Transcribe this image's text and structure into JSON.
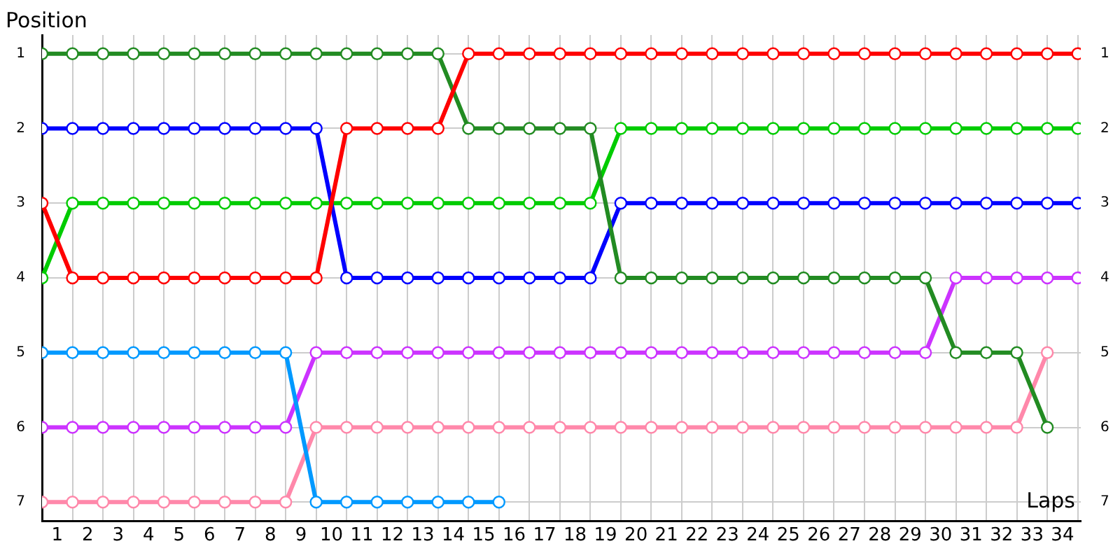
{
  "chart_data": {
    "type": "line",
    "xlabel": "Laps",
    "ylabel": "Position",
    "x": [
      0,
      1,
      2,
      3,
      4,
      5,
      6,
      7,
      8,
      9,
      10,
      11,
      12,
      13,
      14,
      15,
      16,
      17,
      18,
      19,
      20,
      21,
      22,
      23,
      24,
      25,
      26,
      27,
      28,
      29,
      30,
      31,
      32,
      33,
      34
    ],
    "xlim": [
      0,
      34.1
    ],
    "xticks": [
      {
        "value": 0,
        "label": null
      },
      {
        "value": 0.5,
        "label": "1"
      },
      {
        "value": 1,
        "label": null
      },
      {
        "value": 1.5,
        "label": "2"
      },
      {
        "value": 2,
        "label": null
      },
      {
        "value": 2.5,
        "label": "3"
      },
      {
        "value": 3,
        "label": null
      },
      {
        "value": 3.5,
        "label": "4"
      },
      {
        "value": 4,
        "label": null
      },
      {
        "value": 4.5,
        "label": "5"
      },
      {
        "value": 5,
        "label": null
      },
      {
        "value": 5.5,
        "label": "6"
      },
      {
        "value": 6,
        "label": null
      },
      {
        "value": 6.5,
        "label": "7"
      },
      {
        "value": 7,
        "label": null
      },
      {
        "value": 7.5,
        "label": "8"
      },
      {
        "value": 8,
        "label": null
      },
      {
        "value": 8.5,
        "label": "9"
      },
      {
        "value": 9,
        "label": null
      },
      {
        "value": 9.5,
        "label": "10"
      },
      {
        "value": 10,
        "label": null
      },
      {
        "value": 10.5,
        "label": "11"
      },
      {
        "value": 11,
        "label": null
      },
      {
        "value": 11.5,
        "label": "12"
      },
      {
        "value": 12,
        "label": null
      },
      {
        "value": 12.5,
        "label": "13"
      },
      {
        "value": 13,
        "label": null
      },
      {
        "value": 13.5,
        "label": "14"
      },
      {
        "value": 14,
        "label": null
      },
      {
        "value": 14.5,
        "label": "15"
      },
      {
        "value": 15,
        "label": null
      },
      {
        "value": 15.5,
        "label": "16"
      },
      {
        "value": 16,
        "label": null
      },
      {
        "value": 16.5,
        "label": "17"
      },
      {
        "value": 17,
        "label": null
      },
      {
        "value": 17.5,
        "label": "18"
      },
      {
        "value": 18,
        "label": null
      },
      {
        "value": 18.5,
        "label": "19"
      },
      {
        "value": 19,
        "label": null
      },
      {
        "value": 19.5,
        "label": "20"
      },
      {
        "value": 20,
        "label": null
      },
      {
        "value": 20.5,
        "label": "21"
      },
      {
        "value": 21,
        "label": null
      },
      {
        "value": 21.5,
        "label": "22"
      },
      {
        "value": 22,
        "label": null
      },
      {
        "value": 22.5,
        "label": "23"
      },
      {
        "value": 23,
        "label": null
      },
      {
        "value": 23.5,
        "label": "24"
      },
      {
        "value": 24,
        "label": null
      },
      {
        "value": 24.5,
        "label": "25"
      },
      {
        "value": 25,
        "label": null
      },
      {
        "value": 25.5,
        "label": "26"
      },
      {
        "value": 26,
        "label": null
      },
      {
        "value": 26.5,
        "label": "27"
      },
      {
        "value": 27,
        "label": null
      },
      {
        "value": 27.5,
        "label": "28"
      },
      {
        "value": 28,
        "label": null
      },
      {
        "value": 28.5,
        "label": "29"
      },
      {
        "value": 29,
        "label": null
      },
      {
        "value": 29.5,
        "label": "30"
      },
      {
        "value": 30,
        "label": null
      },
      {
        "value": 30.5,
        "label": "31"
      },
      {
        "value": 31,
        "label": null
      },
      {
        "value": 31.5,
        "label": "32"
      },
      {
        "value": 32,
        "label": null
      },
      {
        "value": 32.5,
        "label": "33"
      },
      {
        "value": 33,
        "label": null
      },
      {
        "value": 33.5,
        "label": "34"
      },
      {
        "value": 34,
        "label": null
      }
    ],
    "ylim": [
      7.25,
      0.75
    ],
    "yticks": [
      1,
      2,
      3,
      4,
      5,
      6,
      7
    ],
    "y2lim": [
      7.25,
      0.75
    ],
    "y2ticks": [
      1,
      2,
      3,
      4,
      5,
      6,
      7
    ],
    "grid": true,
    "legend": false,
    "marker": "circle",
    "line_style": "solid",
    "series": [
      {
        "color": "#ff0000",
        "values": [
          3,
          4,
          4,
          4,
          4,
          4,
          4,
          4,
          4,
          4,
          2,
          2,
          2,
          2,
          1,
          1,
          1,
          1,
          1,
          1,
          1,
          1,
          1,
          1,
          1,
          1,
          1,
          1,
          1,
          1,
          1,
          1,
          1,
          1,
          1
        ]
      },
      {
        "color": "#228b22",
        "values": [
          1,
          1,
          1,
          1,
          1,
          1,
          1,
          1,
          1,
          1,
          1,
          1,
          1,
          1,
          2,
          2,
          2,
          2,
          2,
          4,
          4,
          4,
          4,
          4,
          4,
          4,
          4,
          4,
          4,
          4,
          5,
          5,
          5,
          6,
          null
        ]
      },
      {
        "color": "#0000ff",
        "values": [
          2,
          2,
          2,
          2,
          2,
          2,
          2,
          2,
          2,
          2,
          4,
          4,
          4,
          4,
          4,
          4,
          4,
          4,
          4,
          3,
          3,
          3,
          3,
          3,
          3,
          3,
          3,
          3,
          3,
          3,
          3,
          3,
          3,
          3,
          3
        ]
      },
      {
        "color": "#00cc00",
        "values": [
          4,
          3,
          3,
          3,
          3,
          3,
          3,
          3,
          3,
          3,
          3,
          3,
          3,
          3,
          3,
          3,
          3,
          3,
          3,
          2,
          2,
          2,
          2,
          2,
          2,
          2,
          2,
          2,
          2,
          2,
          2,
          2,
          2,
          2,
          2
        ]
      },
      {
        "color": "#0099ff",
        "values": [
          5,
          5,
          5,
          5,
          5,
          5,
          5,
          5,
          5,
          7,
          7,
          7,
          7,
          7,
          7,
          7,
          null,
          null,
          null,
          null,
          null,
          null,
          null,
          null,
          null,
          null,
          null,
          null,
          null,
          null,
          null,
          null,
          null,
          null,
          null
        ]
      },
      {
        "color": "#cc33ff",
        "values": [
          6,
          6,
          6,
          6,
          6,
          6,
          6,
          6,
          6,
          5,
          5,
          5,
          5,
          5,
          5,
          5,
          5,
          5,
          5,
          5,
          5,
          5,
          5,
          5,
          5,
          5,
          5,
          5,
          5,
          5,
          4,
          4,
          4,
          4,
          4
        ]
      },
      {
        "color": "#ff88aa",
        "values": [
          7,
          7,
          7,
          7,
          7,
          7,
          7,
          7,
          7,
          6,
          6,
          6,
          6,
          6,
          6,
          6,
          6,
          6,
          6,
          6,
          6,
          6,
          6,
          6,
          6,
          6,
          6,
          6,
          6,
          6,
          6,
          6,
          6,
          5,
          null
        ]
      }
    ]
  }
}
